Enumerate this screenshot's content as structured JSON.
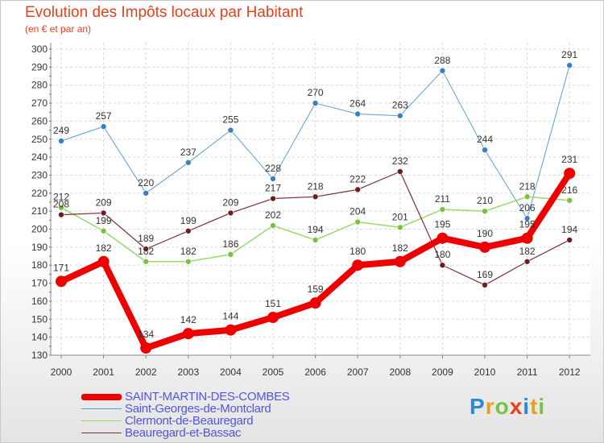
{
  "title": "Evolution des Impôts locaux par Habitant",
  "subtitle": "(en € et par an)",
  "logo": {
    "text": "Proxiti",
    "letter_colors": [
      "#2c88d8",
      "#e8a020",
      "#7ac142",
      "#e8401a",
      "#2c88d8",
      "#e8a020",
      "#7ac142"
    ]
  },
  "chart_data": {
    "type": "line",
    "x": [
      "2000",
      "2001",
      "2002",
      "2003",
      "2004",
      "2005",
      "2006",
      "2007",
      "2008",
      "2009",
      "2010",
      "2011",
      "2012"
    ],
    "ylim": [
      130,
      300
    ],
    "yticks": [
      130,
      140,
      150,
      160,
      170,
      180,
      190,
      200,
      210,
      220,
      230,
      240,
      250,
      260,
      270,
      280,
      290,
      300
    ],
    "grid": true,
    "legend_placement": "bottom-left",
    "series": [
      {
        "name": "Saint-Georges-de-Montclard",
        "color": "#5a9fd4",
        "marker": "#3a7fc0",
        "width": 1,
        "marker_r": 3.5,
        "values": [
          249,
          257,
          220,
          237,
          255,
          228,
          270,
          264,
          263,
          288,
          244,
          206,
          291
        ]
      },
      {
        "name": "Clermont-de-Beauregard",
        "color": "#9ad86a",
        "marker": "#7ac142",
        "width": 1.5,
        "marker_r": 3.5,
        "values": [
          212,
          199,
          182,
          182,
          186,
          202,
          194,
          204,
          201,
          211,
          210,
          218,
          216
        ]
      },
      {
        "name": "Beauregard-et-Bassac",
        "color": "#7a3030",
        "marker": "#6a2020",
        "width": 1.2,
        "marker_r": 3.5,
        "values": [
          208,
          209,
          189,
          199,
          209,
          217,
          218,
          222,
          232,
          180,
          169,
          182,
          194
        ]
      },
      {
        "name": "SAINT-MARTIN-DES-COMBES",
        "color": "#ee0000",
        "marker": "#ee0000",
        "width": 8,
        "marker_r": 7,
        "values": [
          171,
          182,
          134,
          142,
          144,
          151,
          159,
          180,
          182,
          195,
          190,
          195,
          231
        ]
      }
    ],
    "legend_order": [
      "SAINT-MARTIN-DES-COMBES",
      "Saint-Georges-de-Montclard",
      "Clermont-de-Beauregard",
      "Beauregard-et-Bassac"
    ]
  }
}
